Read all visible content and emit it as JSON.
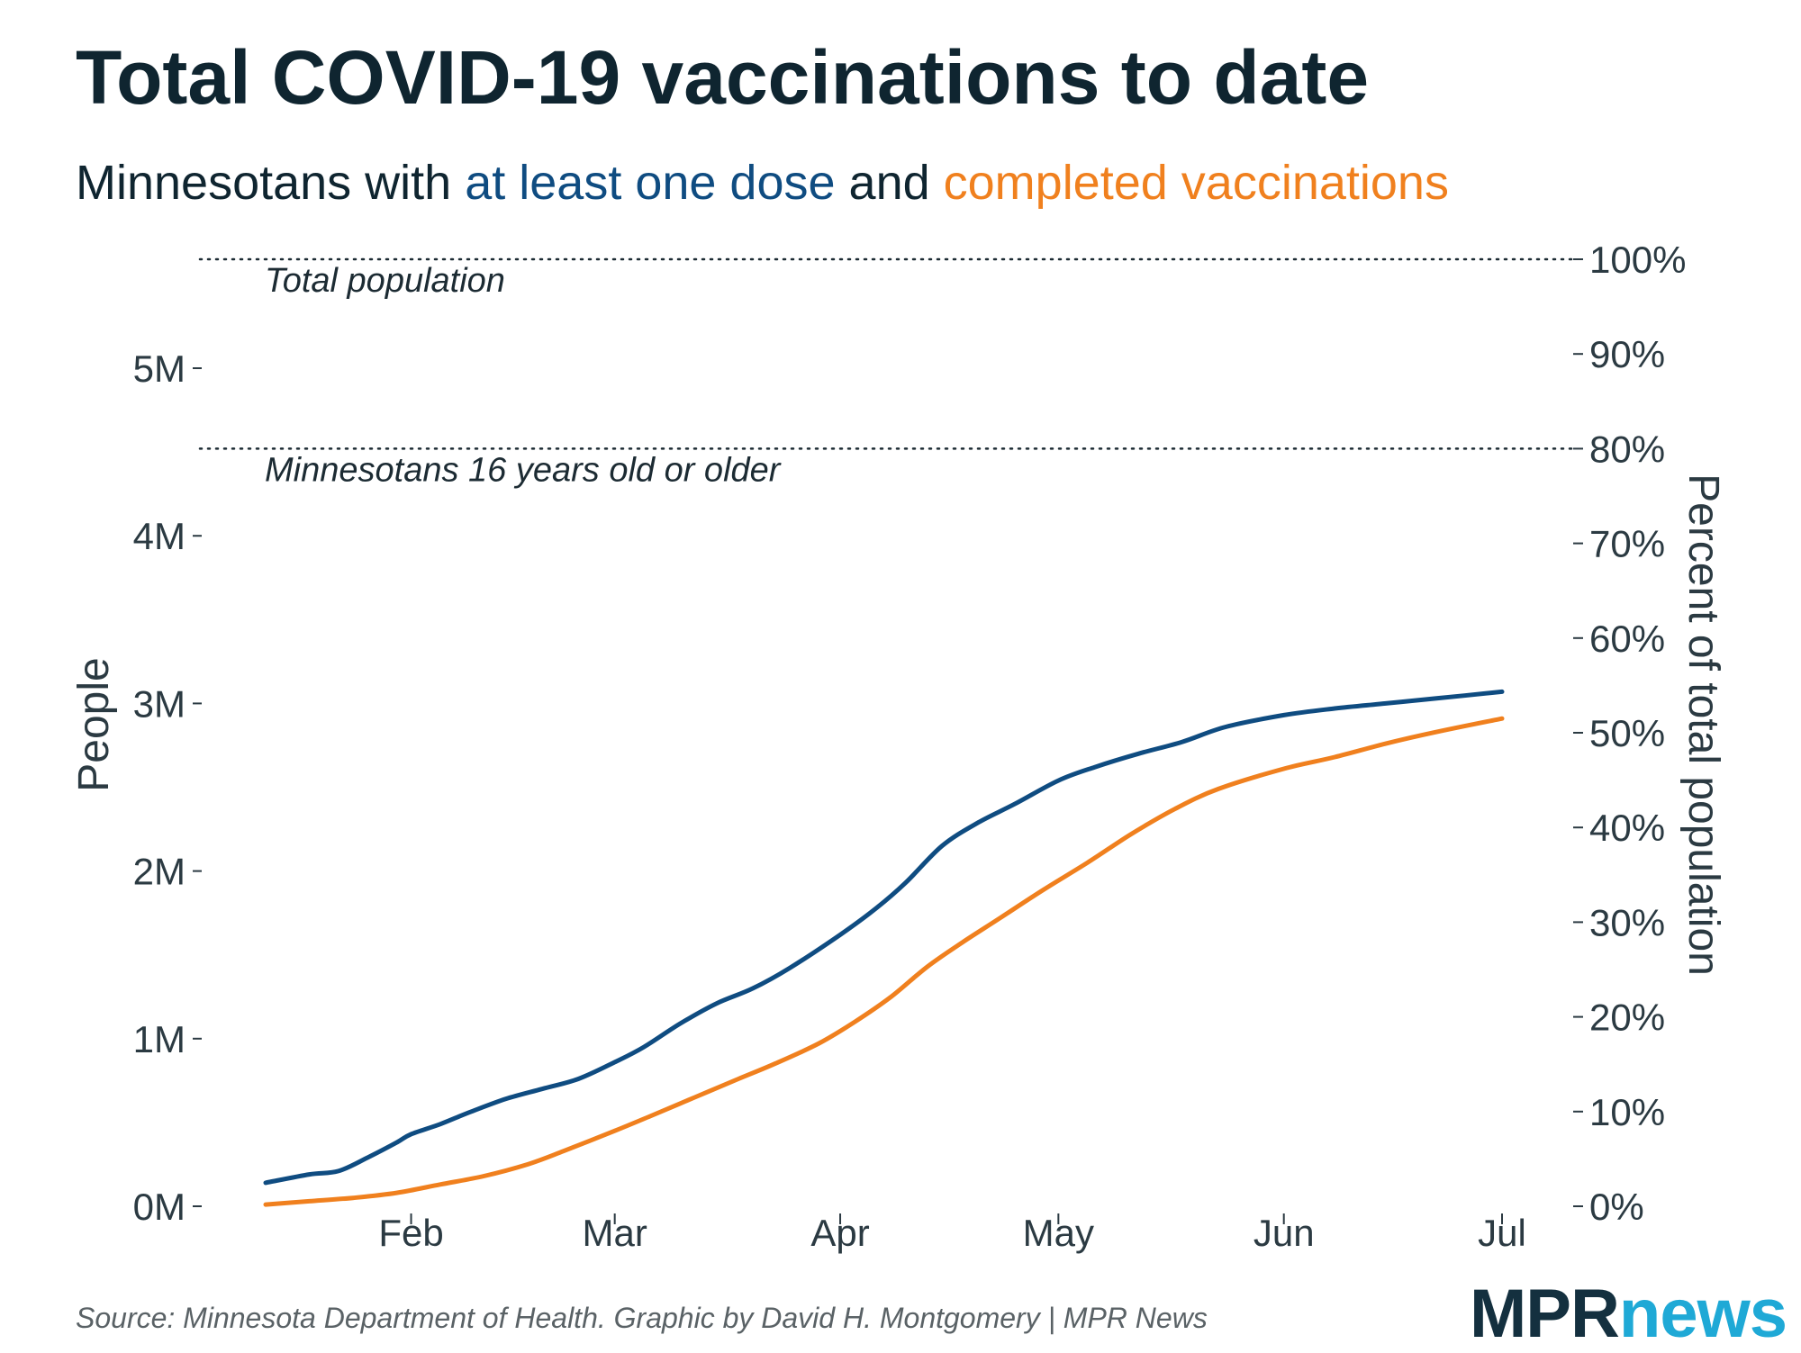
{
  "title": "Total COVID-19 vaccinations to date",
  "subtitle": {
    "prefix": "Minnesotans with ",
    "series1": "at least one dose",
    "middle": " and ",
    "series2": "completed vaccinations"
  },
  "colors": {
    "one_dose": "#0f4c81",
    "completed": "#f0801e",
    "text": "#2b3a42",
    "reference": "#1c2b33"
  },
  "source": "Source: Minnesota Department of Health. Graphic by David H. Montgomery | MPR News",
  "logo": {
    "mpr": "MPR",
    "news": "news"
  },
  "chart_data": {
    "type": "line",
    "x_range": [
      "2021-01-12",
      "2021-07-01"
    ],
    "y_left": {
      "label": "People",
      "range": [
        0,
        5650000
      ],
      "ticks": [
        0,
        1000000,
        2000000,
        3000000,
        4000000,
        5000000
      ],
      "tick_labels": [
        "0M",
        "1M",
        "2M",
        "3M",
        "4M",
        "5M"
      ]
    },
    "y_right": {
      "label": "Percent of total population",
      "range": [
        0,
        100
      ],
      "ticks": [
        0,
        10,
        20,
        30,
        40,
        50,
        60,
        70,
        80,
        90,
        100
      ],
      "tick_labels": [
        "0%",
        "10%",
        "20%",
        "30%",
        "40%",
        "50%",
        "60%",
        "70%",
        "80%",
        "90%",
        "100%"
      ]
    },
    "x_ticks": [
      {
        "date": "2021-02-01",
        "label": "Feb"
      },
      {
        "date": "2021-03-01",
        "label": "Mar"
      },
      {
        "date": "2021-04-01",
        "label": "Apr"
      },
      {
        "date": "2021-05-01",
        "label": "May"
      },
      {
        "date": "2021-06-01",
        "label": "Jun"
      },
      {
        "date": "2021-07-01",
        "label": "Jul"
      }
    ],
    "reference_lines": [
      {
        "value": 5650000,
        "label": "Total population"
      },
      {
        "value": 4520000,
        "label": "Minnesotans 16 years old or older"
      }
    ],
    "grid": false,
    "series": [
      {
        "name": "at least one dose",
        "color": "#0f4c81",
        "points": [
          [
            "2021-01-12",
            140000
          ],
          [
            "2021-01-18",
            190000
          ],
          [
            "2021-01-22",
            210000
          ],
          [
            "2021-01-26",
            290000
          ],
          [
            "2021-01-30",
            380000
          ],
          [
            "2021-02-01",
            430000
          ],
          [
            "2021-02-05",
            490000
          ],
          [
            "2021-02-09",
            560000
          ],
          [
            "2021-02-14",
            640000
          ],
          [
            "2021-02-19",
            700000
          ],
          [
            "2021-02-24",
            760000
          ],
          [
            "2021-03-01",
            860000
          ],
          [
            "2021-03-05",
            950000
          ],
          [
            "2021-03-10",
            1090000
          ],
          [
            "2021-03-15",
            1210000
          ],
          [
            "2021-03-20",
            1300000
          ],
          [
            "2021-03-25",
            1420000
          ],
          [
            "2021-04-01",
            1620000
          ],
          [
            "2021-04-06",
            1780000
          ],
          [
            "2021-04-10",
            1930000
          ],
          [
            "2021-04-15",
            2150000
          ],
          [
            "2021-04-20",
            2290000
          ],
          [
            "2021-04-25",
            2400000
          ],
          [
            "2021-05-01",
            2540000
          ],
          [
            "2021-05-06",
            2620000
          ],
          [
            "2021-05-12",
            2700000
          ],
          [
            "2021-05-18",
            2770000
          ],
          [
            "2021-05-24",
            2860000
          ],
          [
            "2021-06-01",
            2930000
          ],
          [
            "2021-06-08",
            2970000
          ],
          [
            "2021-06-15",
            3000000
          ],
          [
            "2021-06-22",
            3030000
          ],
          [
            "2021-07-01",
            3070000
          ]
        ]
      },
      {
        "name": "completed vaccinations",
        "color": "#f0801e",
        "points": [
          [
            "2021-01-12",
            10000
          ],
          [
            "2021-01-18",
            30000
          ],
          [
            "2021-01-24",
            50000
          ],
          [
            "2021-01-30",
            80000
          ],
          [
            "2021-02-05",
            130000
          ],
          [
            "2021-02-11",
            180000
          ],
          [
            "2021-02-17",
            250000
          ],
          [
            "2021-02-22",
            330000
          ],
          [
            "2021-03-01",
            450000
          ],
          [
            "2021-03-06",
            540000
          ],
          [
            "2021-03-12",
            650000
          ],
          [
            "2021-03-18",
            760000
          ],
          [
            "2021-03-23",
            850000
          ],
          [
            "2021-03-29",
            970000
          ],
          [
            "2021-04-03",
            1100000
          ],
          [
            "2021-04-08",
            1250000
          ],
          [
            "2021-04-13",
            1430000
          ],
          [
            "2021-04-18",
            1580000
          ],
          [
            "2021-04-23",
            1720000
          ],
          [
            "2021-04-29",
            1890000
          ],
          [
            "2021-05-05",
            2050000
          ],
          [
            "2021-05-11",
            2220000
          ],
          [
            "2021-05-17",
            2370000
          ],
          [
            "2021-05-23",
            2490000
          ],
          [
            "2021-06-01",
            2610000
          ],
          [
            "2021-06-08",
            2680000
          ],
          [
            "2021-06-15",
            2760000
          ],
          [
            "2021-06-22",
            2830000
          ],
          [
            "2021-07-01",
            2910000
          ]
        ]
      }
    ]
  }
}
